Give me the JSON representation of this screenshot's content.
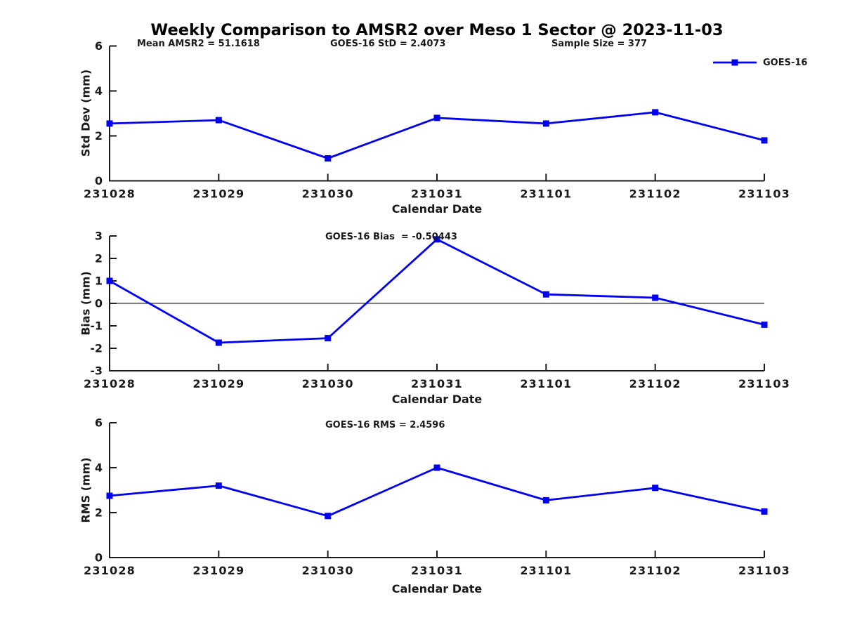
{
  "title": "Weekly Comparison to AMSR2 over Meso 1 Sector @ 2023-11-03",
  "legend": {
    "label": "GOES-16",
    "color": "#0000EE",
    "marker": "square",
    "position": "top-right"
  },
  "chart_data": [
    {
      "type": "line",
      "name": "std-dev-subplot",
      "categories": [
        "231028",
        "231029",
        "231030",
        "231031",
        "231101",
        "231102",
        "231103"
      ],
      "series": [
        {
          "name": "GOES-16",
          "values": [
            2.55,
            2.7,
            1.0,
            2.8,
            2.55,
            3.05,
            1.8
          ]
        }
      ],
      "xlabel": "Calendar Date",
      "ylabel": "Std Dev (mm)",
      "ylim": [
        0,
        6
      ],
      "yticks": [
        0,
        2,
        4,
        6
      ],
      "grid": false,
      "zero_line": false,
      "annotations": [
        "Mean AMSR2 = 51.1618",
        "GOES-16 StD = 2.4073",
        "Sample Size = 377"
      ]
    },
    {
      "type": "line",
      "name": "bias-subplot",
      "categories": [
        "231028",
        "231029",
        "231030",
        "231031",
        "231101",
        "231102",
        "231103"
      ],
      "series": [
        {
          "name": "GOES-16",
          "values": [
            1.0,
            -1.75,
            -1.55,
            2.85,
            0.4,
            0.25,
            -0.95
          ]
        }
      ],
      "xlabel": "Calendar Date",
      "ylabel": "Bias (mm)",
      "ylim": [
        -3,
        3
      ],
      "yticks": [
        -3,
        -2,
        -1,
        0,
        1,
        2,
        3
      ],
      "grid": false,
      "zero_line": true,
      "annotation": "GOES-16 Bias  = -0.50443"
    },
    {
      "type": "line",
      "name": "rms-subplot",
      "categories": [
        "231028",
        "231029",
        "231030",
        "231031",
        "231101",
        "231102",
        "231103"
      ],
      "series": [
        {
          "name": "GOES-16",
          "values": [
            2.75,
            3.2,
            1.85,
            4.0,
            2.55,
            3.1,
            2.05
          ]
        }
      ],
      "xlabel": "Calendar Date",
      "ylabel": "RMS (mm)",
      "ylim": [
        0,
        6
      ],
      "yticks": [
        0,
        2,
        4,
        6
      ],
      "grid": false,
      "zero_line": false,
      "annotation": "GOES-16 RMS = 2.4596"
    }
  ]
}
